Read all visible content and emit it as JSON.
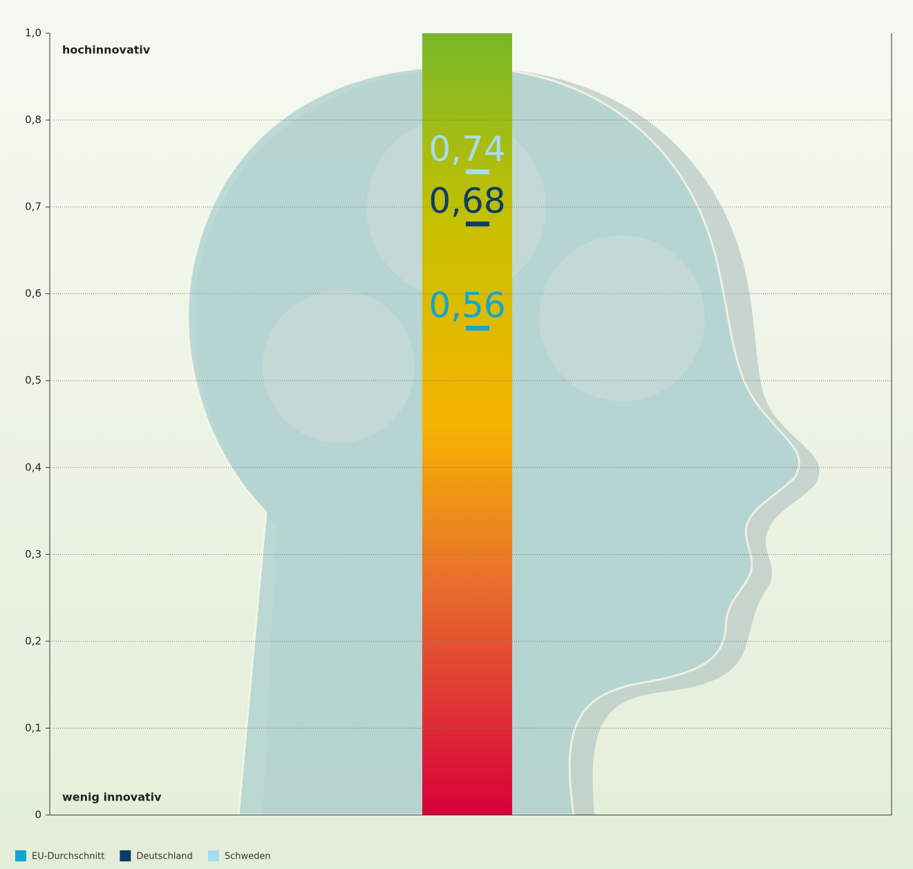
{
  "chart_data": {
    "type": "scale-markers",
    "annotations": [
      "hochinnovativ",
      "wenig innovativ"
    ],
    "series": [
      {
        "name": "EU-Durchschnitt",
        "color": "#12a5d0",
        "values": [
          0.56
        ],
        "value_labels": [
          "0,56"
        ]
      },
      {
        "name": "Deutschland",
        "color": "#0b3d66",
        "values": [
          0.68
        ],
        "value_labels": [
          "0,68"
        ]
      },
      {
        "name": "Schweden",
        "color": "#a9dbee",
        "values": [
          0.74
        ],
        "value_labels": [
          "0,74"
        ]
      }
    ],
    "ylim": [
      0,
      {
        "value": 1.0,
        "label": "1,0"
      }
    ],
    "yticks": [
      0,
      {
        "value": 0.1,
        "label": "0,1"
      },
      {
        "value": 0.2,
        "label": "0,2"
      },
      {
        "value": 0.3,
        "label": "0,3"
      },
      {
        "value": 0.4,
        "label": "0,4"
      },
      {
        "value": 0.5,
        "label": "0,5"
      },
      {
        "value": 0.6,
        "label": "0,6"
      },
      {
        "value": 0.7,
        "label": "0,7"
      },
      {
        "value": 0.8,
        "label": "0,8"
      },
      {
        "value": 1.0,
        "label": "1,0"
      }
    ],
    "grid": true
  }
}
